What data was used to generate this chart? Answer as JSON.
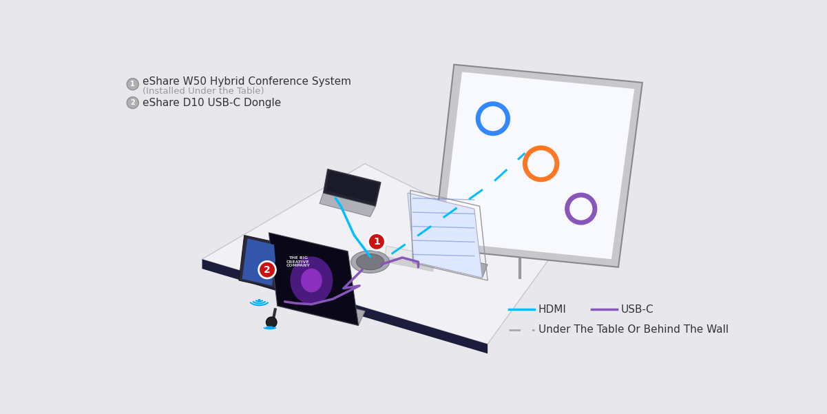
{
  "bg_color": "#e8e8ec",
  "label1_main": "eShare W50 Hybrid Conference System",
  "label1_sub": "(Installed Under the Table)",
  "label2": "eShare D10 USB-C Dongle",
  "legend_hdmi": "HDMI",
  "legend_usbc": "USB-C",
  "legend_dashed": "Under The Table Or Behind The Wall",
  "hdmi_color": "#00bfff",
  "usbc_color": "#8855bb",
  "dash_color": "#aaaaaa",
  "table_color": "#f0f0f5",
  "table_edge_color": "#c8c8cc",
  "table_front_color": "#1c1c3c",
  "bg_gray": "#e4e4ea",
  "num_circle_color": "#cc1111",
  "label_num_color": "#999999",
  "label_main_color": "#333333",
  "label_sub_color": "#999999",
  "legend_text_color": "#333333"
}
